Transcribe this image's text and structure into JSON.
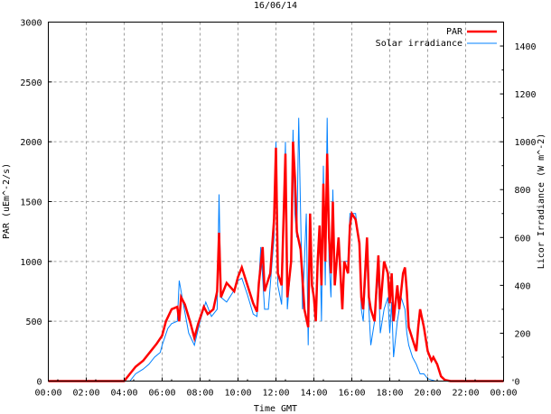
{
  "chart_data": {
    "type": "line",
    "title": "16/06/14",
    "xlabel": "Time GMT",
    "ylabel": "PAR (uEm^-2/s)",
    "y2label": "Licor Irradiance (W m^-2)",
    "xlim": [
      0,
      24
    ],
    "ylim": [
      0,
      3000
    ],
    "y2lim": [
      0,
      1500
    ],
    "grid": true,
    "legend_position": "top-right",
    "x_ticks": [
      0,
      2,
      4,
      6,
      8,
      10,
      12,
      14,
      16,
      18,
      20,
      22,
      24
    ],
    "x_tick_labels": [
      "00:00",
      "02:00",
      "04:00",
      "06:00",
      "08:00",
      "10:00",
      "12:00",
      "14:00",
      "16:00",
      "18:00",
      "20:00",
      "22:00",
      "00:00"
    ],
    "y_ticks": [
      0,
      500,
      1000,
      1500,
      2000,
      2500,
      3000
    ],
    "y_tick_labels": [
      "0",
      "500",
      "1000",
      "1500",
      "2000",
      "2500",
      "3000"
    ],
    "y2_ticks": [
      0,
      200,
      400,
      600,
      800,
      1000,
      1200,
      1400
    ],
    "y2_tick_labels": [
      "0",
      "200",
      "400",
      "600",
      "800",
      "1000",
      "1200",
      "1400"
    ],
    "series": [
      {
        "name": "PAR",
        "axis": "left",
        "color": "#ff0000",
        "points": [
          [
            0,
            0
          ],
          [
            4,
            0
          ],
          [
            4.3,
            60
          ],
          [
            4.6,
            120
          ],
          [
            5,
            170
          ],
          [
            5.4,
            250
          ],
          [
            5.7,
            310
          ],
          [
            6,
            380
          ],
          [
            6.2,
            500
          ],
          [
            6.5,
            600
          ],
          [
            6.8,
            620
          ],
          [
            6.9,
            500
          ],
          [
            7,
            700
          ],
          [
            7.2,
            640
          ],
          [
            7.5,
            480
          ],
          [
            7.7,
            360
          ],
          [
            7.9,
            480
          ],
          [
            8.2,
            620
          ],
          [
            8.4,
            560
          ],
          [
            8.7,
            600
          ],
          [
            8.9,
            750
          ],
          [
            9,
            1240
          ],
          [
            9.1,
            700
          ],
          [
            9.4,
            820
          ],
          [
            9.8,
            750
          ],
          [
            10,
            870
          ],
          [
            10.2,
            950
          ],
          [
            10.5,
            800
          ],
          [
            10.8,
            650
          ],
          [
            11,
            580
          ],
          [
            11.1,
            820
          ],
          [
            11.3,
            1120
          ],
          [
            11.4,
            750
          ],
          [
            11.7,
            900
          ],
          [
            11.9,
            1350
          ],
          [
            12,
            1950
          ],
          [
            12.1,
            900
          ],
          [
            12.3,
            800
          ],
          [
            12.5,
            1900
          ],
          [
            12.6,
            700
          ],
          [
            12.8,
            1000
          ],
          [
            12.9,
            2000
          ],
          [
            13,
            1700
          ],
          [
            13.1,
            1250
          ],
          [
            13.3,
            1100
          ],
          [
            13.5,
            600
          ],
          [
            13.7,
            450
          ],
          [
            13.8,
            1400
          ],
          [
            13.9,
            800
          ],
          [
            14,
            700
          ],
          [
            14.1,
            500
          ],
          [
            14.2,
            1000
          ],
          [
            14.3,
            1300
          ],
          [
            14.4,
            800
          ],
          [
            14.5,
            1650
          ],
          [
            14.6,
            1000
          ],
          [
            14.7,
            1900
          ],
          [
            14.8,
            1200
          ],
          [
            14.9,
            900
          ],
          [
            15,
            1500
          ],
          [
            15.1,
            800
          ],
          [
            15.3,
            1200
          ],
          [
            15.5,
            600
          ],
          [
            15.6,
            1000
          ],
          [
            15.8,
            900
          ],
          [
            15.9,
            1300
          ],
          [
            16,
            1400
          ],
          [
            16.2,
            1350
          ],
          [
            16.4,
            1150
          ],
          [
            16.5,
            700
          ],
          [
            16.6,
            600
          ],
          [
            16.8,
            1200
          ],
          [
            16.9,
            700
          ],
          [
            17,
            600
          ],
          [
            17.2,
            500
          ],
          [
            17.4,
            1050
          ],
          [
            17.5,
            600
          ],
          [
            17.7,
            1000
          ],
          [
            17.9,
            900
          ],
          [
            18,
            650
          ],
          [
            18.1,
            900
          ],
          [
            18.2,
            500
          ],
          [
            18.4,
            800
          ],
          [
            18.5,
            600
          ],
          [
            18.7,
            900
          ],
          [
            18.8,
            950
          ],
          [
            18.9,
            750
          ],
          [
            19,
            450
          ],
          [
            19.2,
            350
          ],
          [
            19.4,
            250
          ],
          [
            19.5,
            450
          ],
          [
            19.6,
            600
          ],
          [
            19.8,
            450
          ],
          [
            20,
            250
          ],
          [
            20.2,
            170
          ],
          [
            20.3,
            200
          ],
          [
            20.5,
            140
          ],
          [
            20.7,
            40
          ],
          [
            20.9,
            10
          ],
          [
            21.2,
            0
          ],
          [
            24,
            0
          ]
        ]
      },
      {
        "name": "Solar irradiance",
        "axis": "right",
        "color": "#0080ff",
        "points": [
          [
            0,
            0
          ],
          [
            4.3,
            0
          ],
          [
            4.6,
            30
          ],
          [
            5,
            50
          ],
          [
            5.3,
            70
          ],
          [
            5.6,
            100
          ],
          [
            5.9,
            120
          ],
          [
            6,
            150
          ],
          [
            6.3,
            220
          ],
          [
            6.5,
            240
          ],
          [
            6.8,
            250
          ],
          [
            6.9,
            420
          ],
          [
            7.1,
            330
          ],
          [
            7.4,
            200
          ],
          [
            7.7,
            150
          ],
          [
            8,
            250
          ],
          [
            8.3,
            330
          ],
          [
            8.6,
            270
          ],
          [
            8.9,
            300
          ],
          [
            9,
            780
          ],
          [
            9.1,
            350
          ],
          [
            9.4,
            330
          ],
          [
            9.8,
            380
          ],
          [
            10,
            420
          ],
          [
            10.2,
            430
          ],
          [
            10.5,
            360
          ],
          [
            10.8,
            280
          ],
          [
            11,
            270
          ],
          [
            11.2,
            560
          ],
          [
            11.4,
            300
          ],
          [
            11.6,
            300
          ],
          [
            11.9,
            600
          ],
          [
            12,
            1000
          ],
          [
            12.1,
            400
          ],
          [
            12.3,
            320
          ],
          [
            12.5,
            1000
          ],
          [
            12.6,
            300
          ],
          [
            12.8,
            500
          ],
          [
            12.9,
            1050
          ],
          [
            13,
            700
          ],
          [
            13.1,
            600
          ],
          [
            13.2,
            1100
          ],
          [
            13.4,
            300
          ],
          [
            13.6,
            700
          ],
          [
            13.7,
            150
          ],
          [
            13.8,
            700
          ],
          [
            13.9,
            400
          ],
          [
            14,
            350
          ],
          [
            14.1,
            250
          ],
          [
            14.3,
            650
          ],
          [
            14.4,
            250
          ],
          [
            14.5,
            900
          ],
          [
            14.6,
            400
          ],
          [
            14.7,
            1100
          ],
          [
            14.8,
            500
          ],
          [
            14.9,
            350
          ],
          [
            15,
            800
          ],
          [
            15.1,
            400
          ],
          [
            15.3,
            600
          ],
          [
            15.5,
            300
          ],
          [
            15.6,
            500
          ],
          [
            15.8,
            500
          ],
          [
            15.9,
            700
          ],
          [
            16,
            700
          ],
          [
            16.2,
            700
          ],
          [
            16.4,
            550
          ],
          [
            16.5,
            300
          ],
          [
            16.6,
            250
          ],
          [
            16.8,
            540
          ],
          [
            16.9,
            300
          ],
          [
            17,
            150
          ],
          [
            17.2,
            250
          ],
          [
            17.4,
            450
          ],
          [
            17.5,
            200
          ],
          [
            17.7,
            300
          ],
          [
            17.9,
            350
          ],
          [
            18,
            200
          ],
          [
            18.1,
            330
          ],
          [
            18.2,
            100
          ],
          [
            18.4,
            250
          ],
          [
            18.6,
            350
          ],
          [
            18.8,
            300
          ],
          [
            18.9,
            200
          ],
          [
            19,
            150
          ],
          [
            19.2,
            100
          ],
          [
            19.4,
            70
          ],
          [
            19.6,
            30
          ],
          [
            19.8,
            30
          ],
          [
            20,
            10
          ],
          [
            20.2,
            5
          ],
          [
            20.4,
            0
          ],
          [
            24,
            0
          ]
        ]
      }
    ]
  }
}
